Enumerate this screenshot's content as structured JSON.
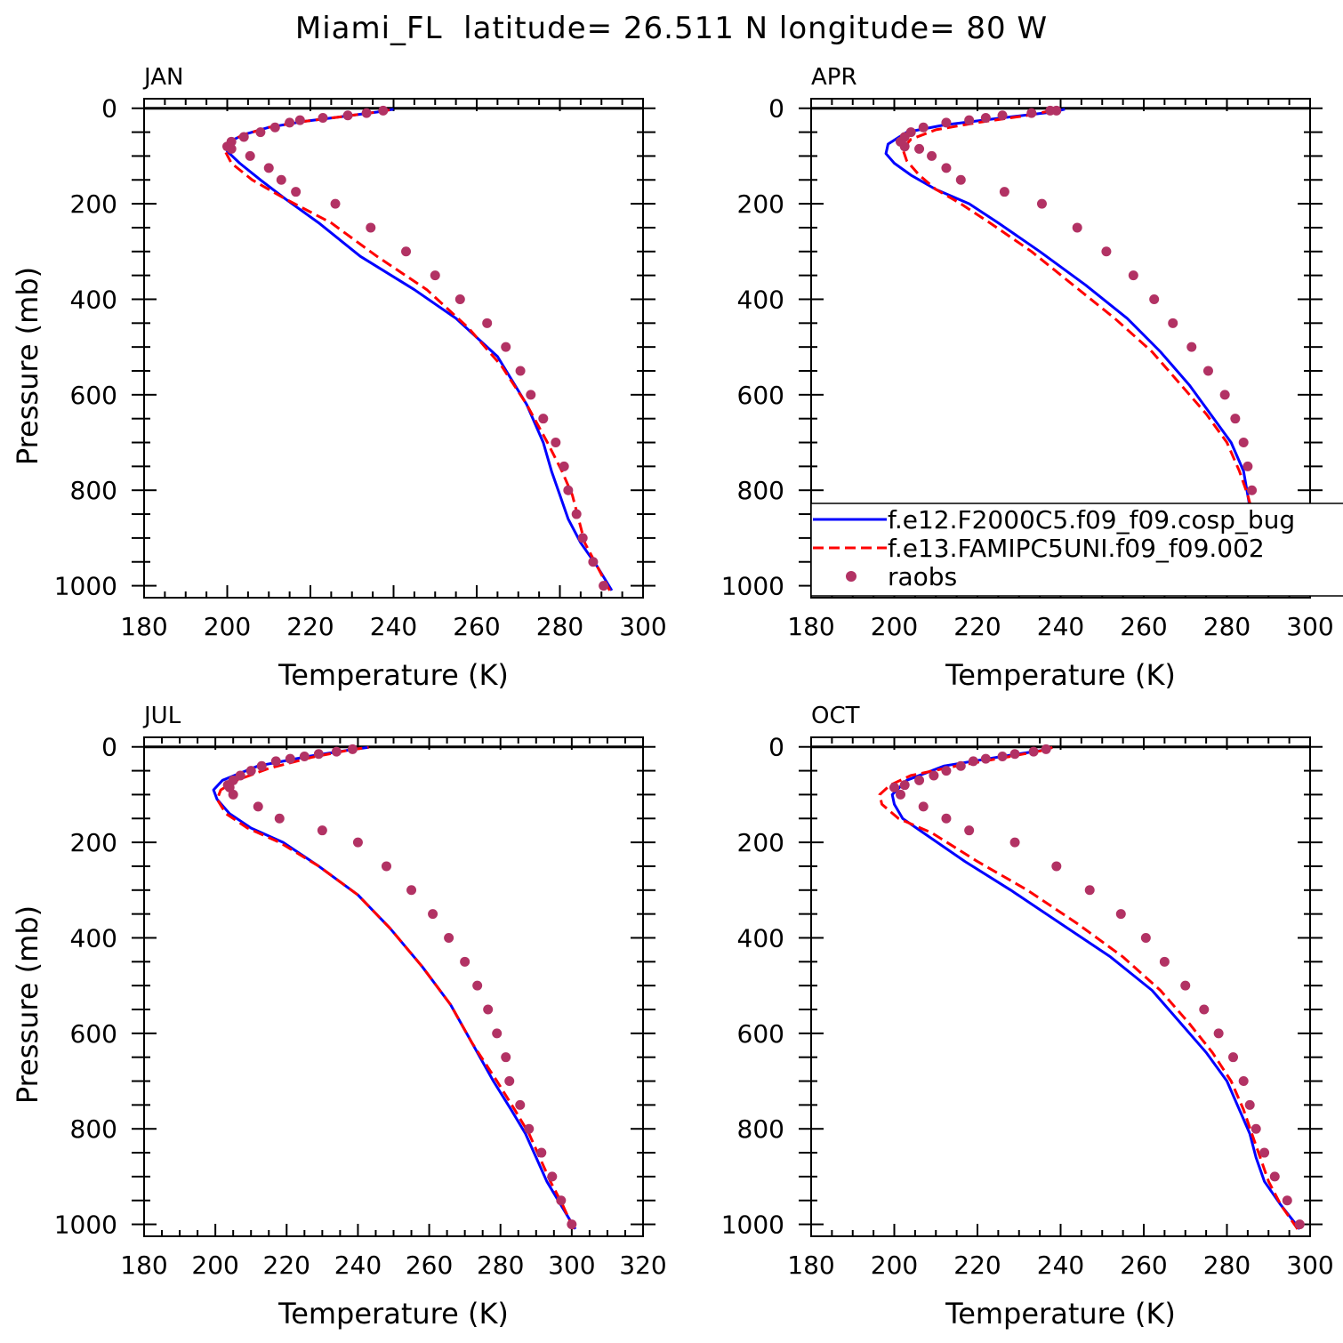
{
  "figure": {
    "title": "Miami_FL  latitude= 26.511 N longitude= 80 W"
  },
  "colors": {
    "model1": "#0000ff",
    "model2": "#ff0000",
    "raobs": "#b23264",
    "axis": "#000000"
  },
  "legend": {
    "panel": 1,
    "entries": [
      {
        "label": "f.e12.F2000C5.f09_f09.cosp_bug",
        "style": "solid",
        "color": "#0000ff"
      },
      {
        "label": "f.e13.FAMIPC5UNI.f09_f09.002",
        "style": "dashed",
        "color": "#ff0000"
      },
      {
        "label": "raobs",
        "style": "marker",
        "color": "#b23264"
      }
    ]
  },
  "chart_data": [
    {
      "type": "line",
      "month": "JAN",
      "xlabel": "Temperature (K)",
      "ylabel": "Pressure (mb)",
      "xlim": [
        180,
        300
      ],
      "ylim": [
        1000,
        0
      ],
      "xticks": [
        "180",
        "200",
        "220",
        "240",
        "260",
        "280",
        "300"
      ],
      "yticks": [
        "0",
        "200",
        "400",
        "600",
        "800",
        "1000"
      ],
      "series": [
        {
          "key": "model1",
          "x": [
            292.5,
            289,
            285,
            282,
            280,
            278,
            276,
            272,
            265,
            255,
            245,
            232,
            222,
            214,
            208,
            203,
            200,
            200.5,
            204,
            210,
            218,
            228,
            236,
            240
          ],
          "y": [
            1010,
            960,
            910,
            860,
            810,
            760,
            700,
            620,
            520,
            440,
            380,
            310,
            240,
            190,
            150,
            115,
            90,
            70,
            55,
            40,
            28,
            17,
            8,
            2
          ]
        },
        {
          "key": "model2",
          "x": [
            292,
            289,
            286,
            284.5,
            283,
            280.5,
            277,
            272,
            266,
            258,
            248,
            236,
            225,
            214,
            206,
            201,
            199.5,
            200.5,
            204,
            210,
            218,
            228,
            236,
            240
          ],
          "y": [
            1010,
            960,
            910,
            860,
            810,
            760,
            700,
            620,
            540,
            460,
            380,
            310,
            240,
            190,
            150,
            115,
            90,
            70,
            55,
            40,
            28,
            17,
            8,
            2
          ]
        },
        {
          "key": "raobs",
          "x": [
            290.5,
            288,
            285.5,
            284,
            282,
            281,
            279,
            276,
            273,
            270.5,
            267,
            262.5,
            256,
            250,
            243,
            234.5,
            226,
            216.5,
            213,
            210,
            205.5,
            201,
            200,
            201,
            204,
            208,
            211.5,
            215,
            217.5,
            223,
            229,
            233.5,
            237.5
          ],
          "y": [
            1000,
            950,
            900,
            850,
            800,
            750,
            700,
            650,
            600,
            550,
            500,
            450,
            400,
            350,
            300,
            250,
            200,
            175,
            150,
            125,
            100,
            85,
            80,
            70,
            60,
            50,
            40,
            30,
            25,
            20,
            15,
            10,
            5
          ]
        }
      ]
    },
    {
      "type": "line",
      "month": "APR",
      "xlabel": "Temperature (K)",
      "ylabel": "",
      "xlim": [
        180,
        300
      ],
      "ylim": [
        1000,
        0
      ],
      "xticks": [
        "180",
        "200",
        "220",
        "240",
        "260",
        "280",
        "300"
      ],
      "yticks": [
        "0",
        "200",
        "400",
        "600",
        "800",
        "1000"
      ],
      "series": [
        {
          "key": "model1",
          "x": [
            296.5,
            292,
            288,
            286,
            285,
            284,
            281,
            276,
            271,
            264,
            256,
            246,
            235,
            225,
            218,
            210,
            204,
            200,
            198,
            198.5,
            203,
            212,
            226,
            238,
            241
          ],
          "y": [
            1010,
            960,
            910,
            860,
            810,
            760,
            700,
            640,
            580,
            510,
            440,
            370,
            300,
            240,
            200,
            170,
            140,
            115,
            95,
            75,
            50,
            35,
            20,
            8,
            2
          ]
        },
        {
          "key": "model2",
          "x": [
            296,
            292,
            288.5,
            286.5,
            285,
            283,
            280,
            275,
            269,
            262,
            253,
            243,
            233,
            223,
            216,
            210,
            206,
            203,
            202,
            204,
            210,
            220,
            232,
            239
          ],
          "y": [
            1010,
            960,
            910,
            860,
            810,
            760,
            700,
            640,
            580,
            510,
            440,
            370,
            300,
            240,
            200,
            170,
            140,
            110,
            85,
            65,
            45,
            30,
            15,
            3
          ]
        },
        {
          "key": "raobs",
          "x": [
            295.5,
            293,
            290,
            288,
            286,
            285,
            284,
            282,
            279.5,
            275.5,
            271.5,
            267,
            262.5,
            257.5,
            251,
            244,
            235.5,
            226.5,
            216,
            212.5,
            209,
            206,
            202.5,
            201.5,
            202.5,
            204,
            207,
            212.5,
            218,
            222,
            226,
            233,
            237.5,
            239
          ],
          "y": [
            1000,
            950,
            900,
            850,
            800,
            750,
            700,
            650,
            600,
            550,
            500,
            450,
            400,
            350,
            300,
            250,
            200,
            175,
            150,
            125,
            100,
            85,
            80,
            70,
            60,
            50,
            40,
            30,
            25,
            20,
            15,
            10,
            5,
            5
          ]
        }
      ]
    },
    {
      "type": "line",
      "month": "JUL",
      "xlabel": "Temperature (K)",
      "ylabel": "Pressure (mb)",
      "xlim": [
        180,
        320
      ],
      "ylim": [
        1000,
        0
      ],
      "xticks": [
        "180",
        "200",
        "220",
        "240",
        "260",
        "280",
        "300",
        "320"
      ],
      "yticks": [
        "0",
        "200",
        "400",
        "600",
        "800",
        "1000"
      ],
      "series": [
        {
          "key": "model1",
          "x": [
            301,
            297,
            293,
            290,
            287,
            283,
            278,
            272,
            266,
            258,
            249,
            240,
            229,
            219,
            210,
            204,
            200.5,
            199.5,
            202,
            212,
            226,
            238,
            243
          ],
          "y": [
            1010,
            960,
            910,
            860,
            810,
            760,
            700,
            620,
            540,
            460,
            380,
            310,
            250,
            200,
            170,
            140,
            110,
            90,
            70,
            40,
            20,
            6,
            1
          ]
        },
        {
          "key": "model2",
          "x": [
            300.5,
            297.5,
            294,
            291,
            288,
            284,
            279,
            272,
            266,
            258,
            249,
            240,
            229,
            218,
            209,
            203,
            200.5,
            201.5,
            206,
            215,
            227,
            238,
            243
          ],
          "y": [
            1010,
            960,
            910,
            860,
            810,
            760,
            700,
            620,
            540,
            460,
            380,
            310,
            250,
            200,
            170,
            140,
            110,
            90,
            70,
            45,
            22,
            6,
            1
          ]
        },
        {
          "key": "raobs",
          "x": [
            300,
            297,
            294.5,
            291.5,
            288,
            285.5,
            282.5,
            281.5,
            279,
            276.5,
            273.5,
            270,
            265.5,
            261,
            255,
            248,
            240,
            230,
            218,
            212,
            205,
            204,
            203.5,
            205,
            207,
            210,
            213,
            217,
            221,
            225,
            229,
            234,
            238.5
          ],
          "y": [
            1000,
            950,
            900,
            850,
            800,
            750,
            700,
            650,
            600,
            550,
            500,
            450,
            400,
            350,
            300,
            250,
            200,
            175,
            150,
            125,
            100,
            85,
            80,
            70,
            60,
            50,
            40,
            30,
            25,
            20,
            15,
            10,
            5
          ]
        }
      ]
    },
    {
      "type": "line",
      "month": "OCT",
      "xlabel": "Temperature (K)",
      "ylabel": "",
      "xlim": [
        180,
        300
      ],
      "ylim": [
        1000,
        0
      ],
      "xticks": [
        "180",
        "200",
        "220",
        "240",
        "260",
        "280",
        "300"
      ],
      "yticks": [
        "0",
        "200",
        "400",
        "600",
        "800",
        "1000"
      ],
      "series": [
        {
          "key": "model1",
          "x": [
            297.5,
            293,
            289,
            287,
            285.5,
            283,
            280,
            275,
            269,
            262,
            252,
            240,
            228,
            217,
            207,
            202,
            200,
            199.5,
            203,
            212,
            226,
            236.5,
            238
          ],
          "y": [
            1010,
            960,
            910,
            860,
            810,
            760,
            700,
            640,
            580,
            510,
            440,
            370,
            300,
            240,
            180,
            150,
            120,
            100,
            70,
            40,
            20,
            6,
            1
          ]
        },
        {
          "key": "model2",
          "x": [
            297,
            293,
            290,
            288,
            286,
            284,
            281,
            276.5,
            271,
            264,
            255,
            244,
            232,
            220,
            209,
            201,
            197,
            196.5,
            199,
            204,
            215,
            228,
            236.5,
            238
          ],
          "y": [
            1010,
            960,
            910,
            860,
            810,
            760,
            700,
            640,
            580,
            510,
            440,
            370,
            300,
            240,
            180,
            150,
            120,
            100,
            80,
            60,
            40,
            20,
            6,
            1
          ]
        },
        {
          "key": "raobs",
          "x": [
            297.5,
            294.5,
            291.5,
            289,
            287,
            285.5,
            284,
            281.5,
            278,
            274.5,
            270,
            265,
            260.5,
            254.5,
            247,
            239,
            229,
            218,
            212.5,
            207,
            201.5,
            200,
            202.5,
            206,
            209.5,
            212.5,
            216,
            219,
            222,
            226,
            229,
            233.5,
            236.5
          ],
          "y": [
            1000,
            950,
            900,
            850,
            800,
            750,
            700,
            650,
            600,
            550,
            500,
            450,
            400,
            350,
            300,
            250,
            200,
            175,
            150,
            125,
            100,
            85,
            80,
            70,
            60,
            50,
            40,
            30,
            25,
            20,
            15,
            10,
            5
          ]
        }
      ]
    }
  ]
}
